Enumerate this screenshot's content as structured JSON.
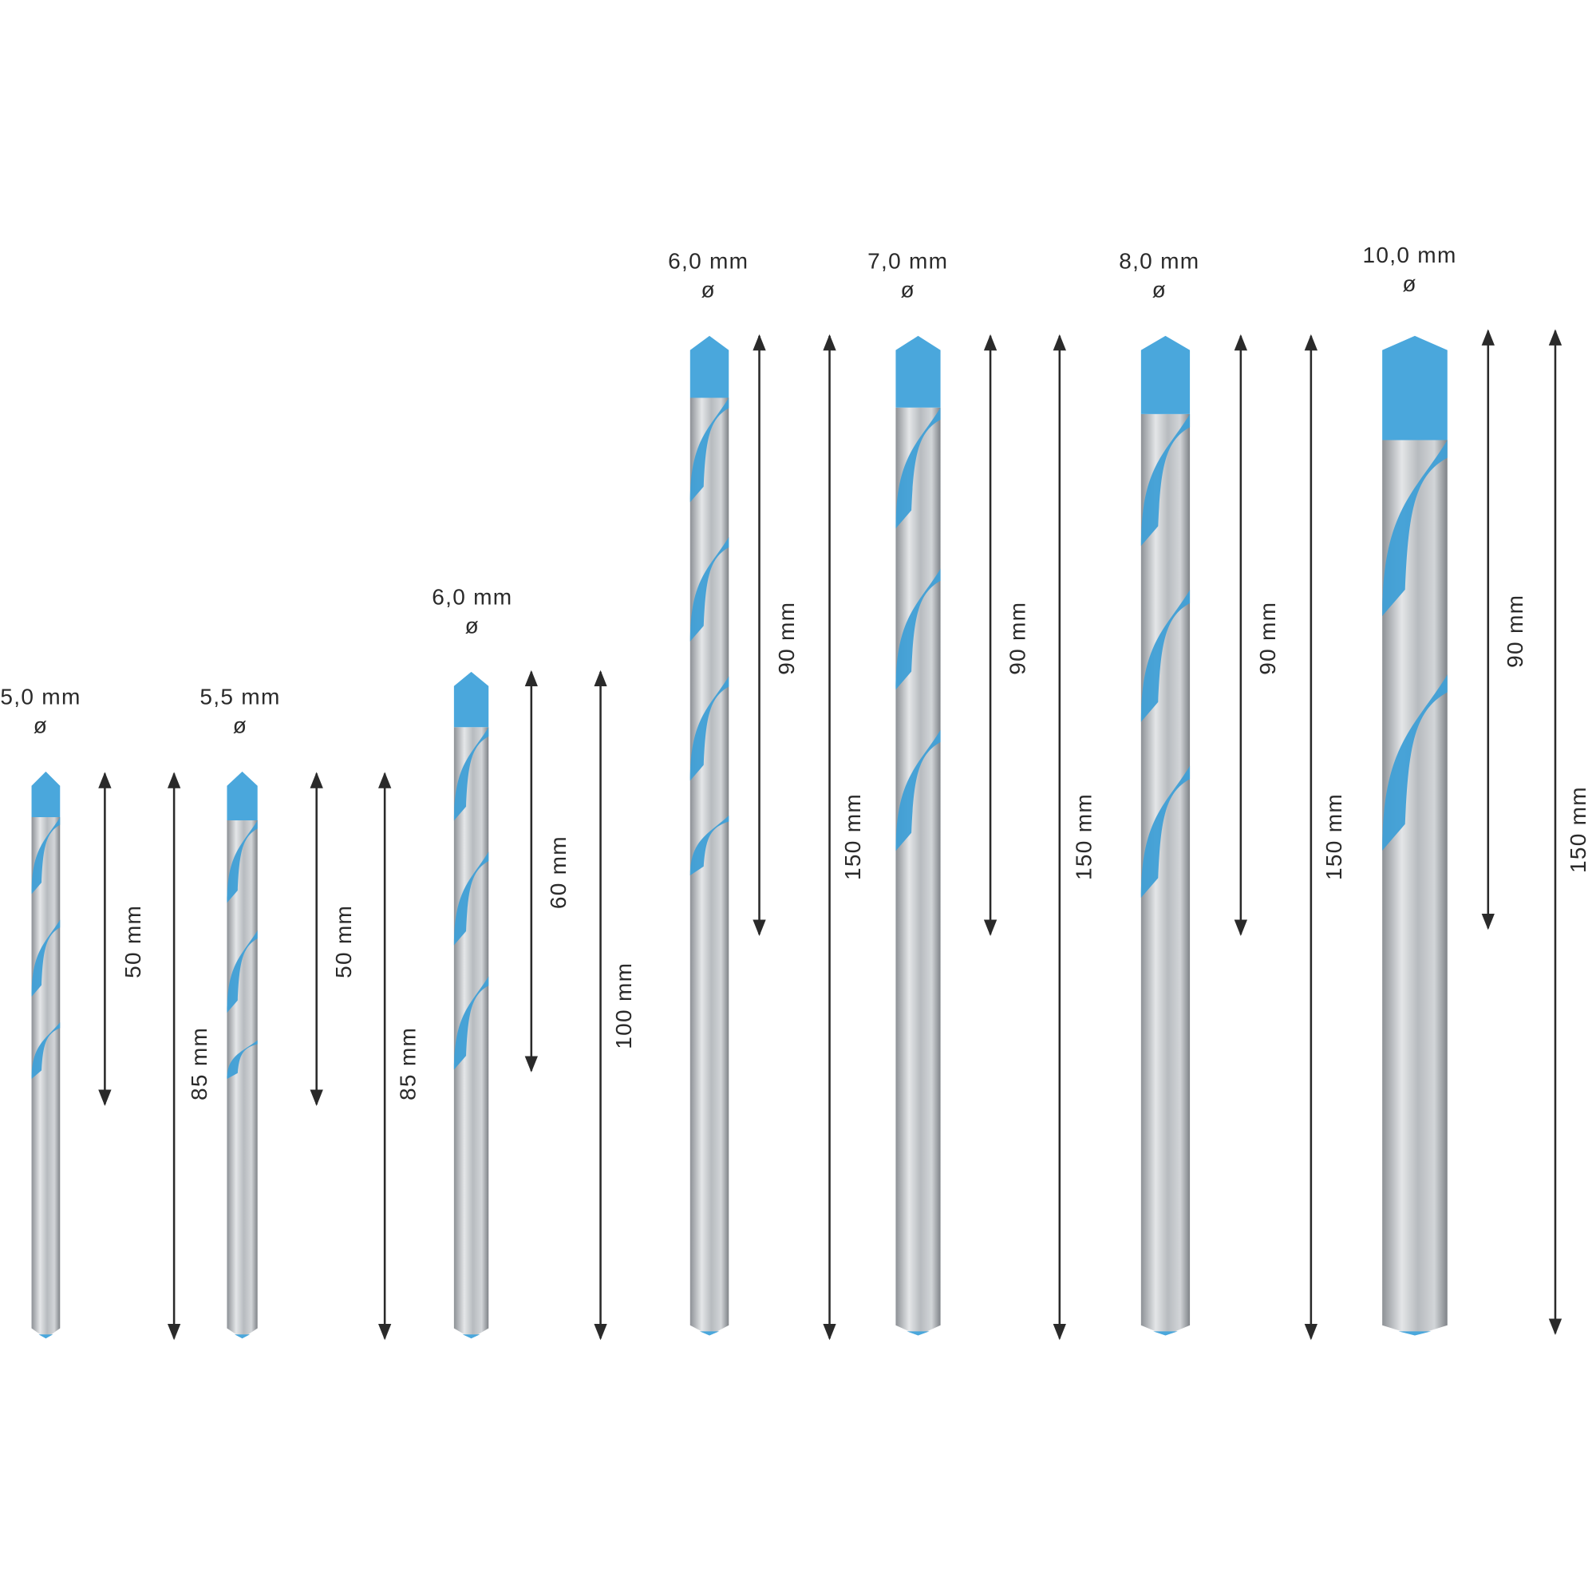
{
  "bits": [
    {
      "diameter": "5,0 mm",
      "symbol": "ø",
      "flute_length": "50 mm",
      "total_length": "85 mm"
    },
    {
      "diameter": "5,5 mm",
      "symbol": "ø",
      "flute_length": "50 mm",
      "total_length": "85 mm"
    },
    {
      "diameter": "6,0 mm",
      "symbol": "ø",
      "flute_length": "60 mm",
      "total_length": "100 mm"
    },
    {
      "diameter": "6,0 mm",
      "symbol": "ø",
      "flute_length": "90 mm",
      "total_length": "150 mm"
    },
    {
      "diameter": "7,0 mm",
      "symbol": "ø",
      "flute_length": "90 mm",
      "total_length": "150 mm"
    },
    {
      "diameter": "8,0 mm",
      "symbol": "ø",
      "flute_length": "90 mm",
      "total_length": "150 mm"
    },
    {
      "diameter": "10,0 mm",
      "symbol": "ø",
      "flute_length": "90 mm",
      "total_length": "150 mm"
    }
  ]
}
